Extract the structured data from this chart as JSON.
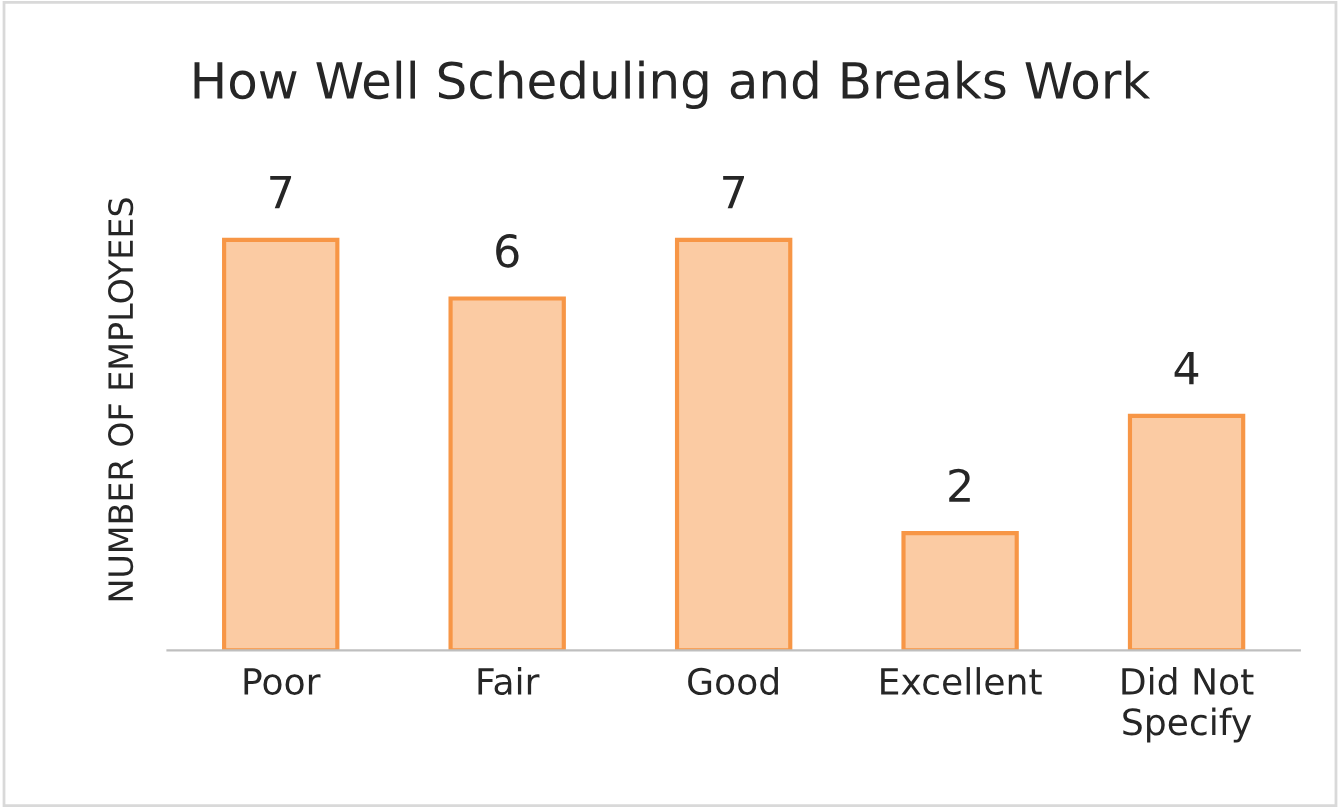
{
  "chart_data": {
    "type": "bar",
    "title": "How Well Scheduling and Breaks Work",
    "ylabel": "NUMBER OF EMPLOYEES",
    "categories": [
      "Poor",
      "Fair",
      "Good",
      "Excellent",
      "Did Not\nSpecify"
    ],
    "values": [
      7,
      6,
      7,
      2,
      4
    ],
    "color": "#fbcba3",
    "data_labels": true,
    "grid": false,
    "legend": false
  }
}
